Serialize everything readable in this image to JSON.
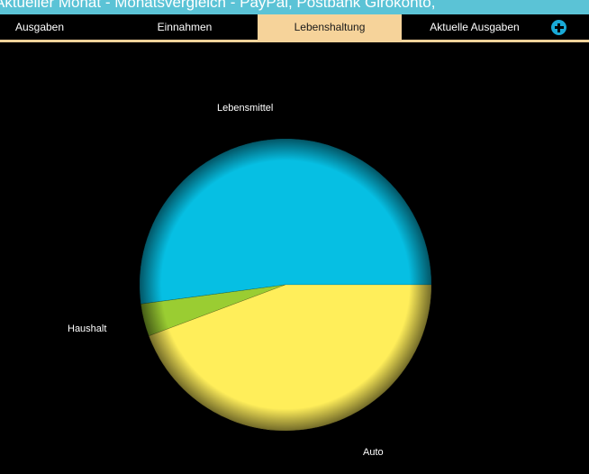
{
  "window": {
    "title": "Aktueller Monat - Monatsvergleich - PayPal, Postbank Girokonto,"
  },
  "tabs": [
    {
      "label": "Ausgaben",
      "active": false
    },
    {
      "label": "Einnahmen",
      "active": false
    },
    {
      "label": "Lebenshaltung",
      "active": true
    },
    {
      "label": "Aktuelle Ausgaben",
      "active": false
    }
  ],
  "toolbar": {
    "add_icon": "plus-circle-icon"
  },
  "colors": {
    "titlebar": "#5bc3d6",
    "active_tab": "#f6d39a",
    "add_button": "#19a9d6"
  },
  "chart_data": {
    "type": "pie",
    "title": "",
    "slices": [
      {
        "label": "Lebensmittel",
        "value": 52.1,
        "color": "#06bfe3"
      },
      {
        "label": "Haushalt",
        "value": 3.6,
        "color": "#9acd32"
      },
      {
        "label": "Auto",
        "value": 44.3,
        "color": "#ffee5a"
      }
    ],
    "legend": "none",
    "labels": "outside"
  }
}
